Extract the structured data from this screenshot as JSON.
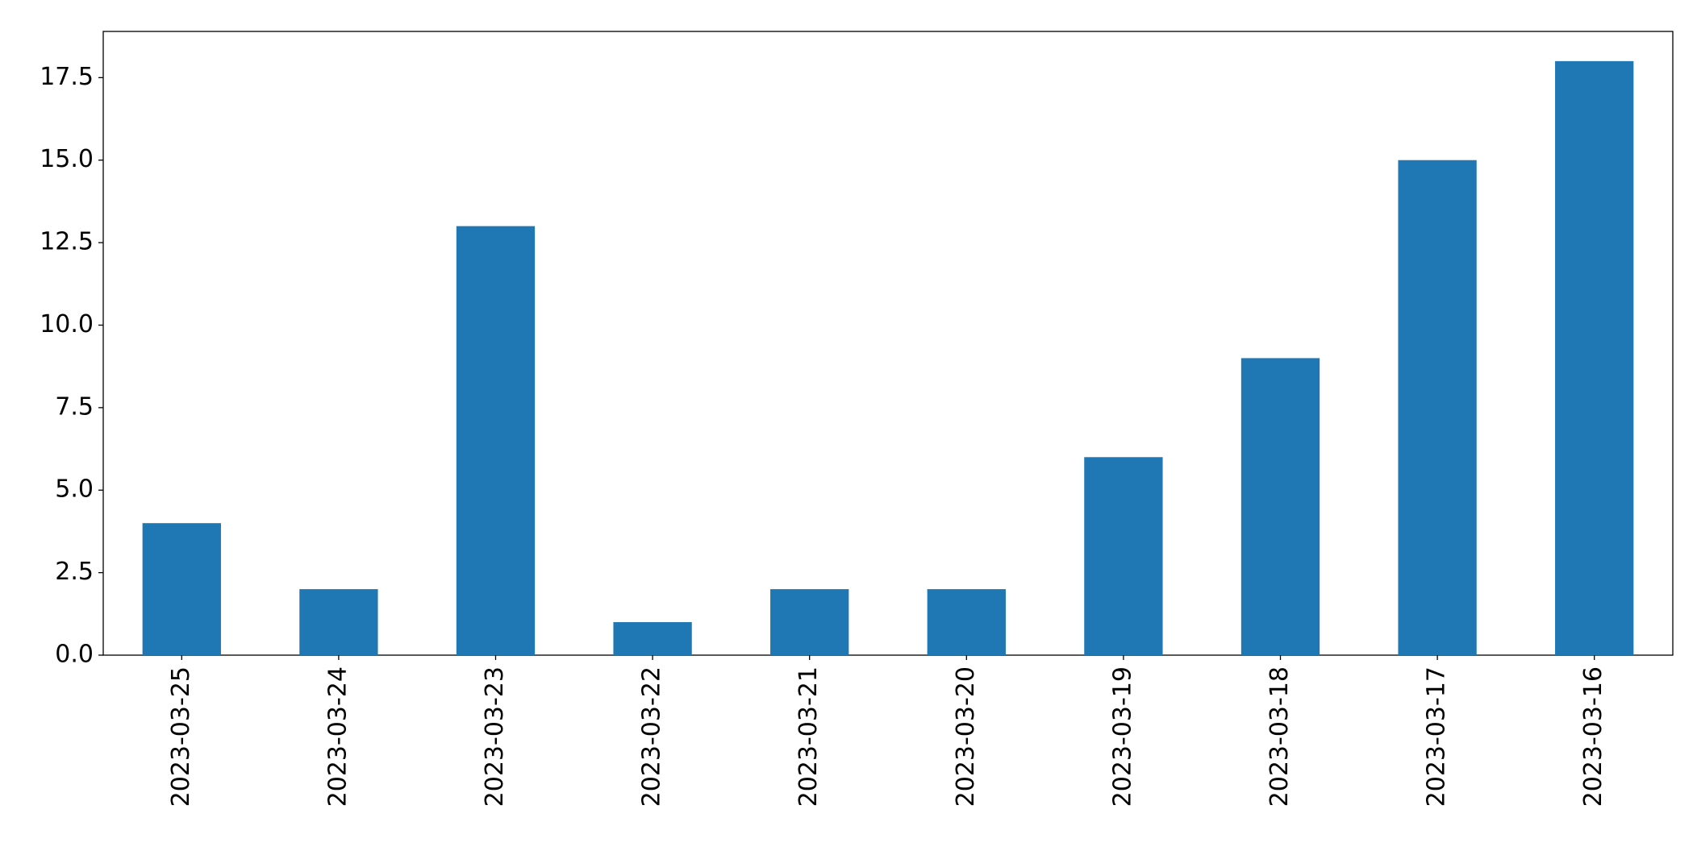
{
  "chart_data": {
    "type": "bar",
    "categories": [
      "2023-03-25",
      "2023-03-24",
      "2023-03-23",
      "2023-03-22",
      "2023-03-21",
      "2023-03-20",
      "2023-03-19",
      "2023-03-18",
      "2023-03-17",
      "2023-03-16"
    ],
    "values": [
      4,
      2,
      13,
      1,
      2,
      2,
      6,
      9,
      15,
      18
    ],
    "color": "#1f77b4",
    "ylim": [
      0,
      18.9
    ],
    "yticks": [
      {
        "value": 0,
        "label": "0.0"
      },
      2.5,
      {
        "value": 5,
        "label": "5.0"
      },
      7.5,
      {
        "value": 10,
        "label": "10.0"
      },
      12.5,
      {
        "value": 15,
        "label": "15.0"
      },
      17.5
    ],
    "grid": false
  }
}
